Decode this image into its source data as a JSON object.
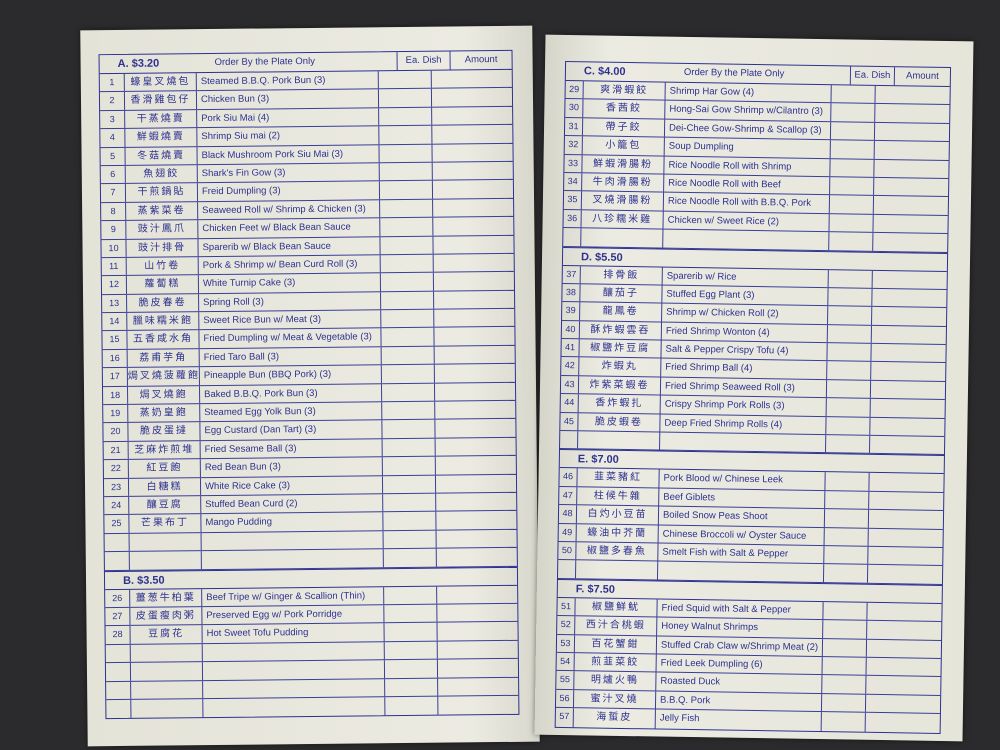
{
  "column_headers": {
    "order_note": "Order By the Plate Only",
    "each_dish": "Ea. Dish",
    "amount": "Amount"
  },
  "left_page": {
    "sections": [
      {
        "price": "A. $3.20",
        "show_headers": true,
        "items": [
          {
            "no": "1",
            "zh": "蠔皇叉燒包",
            "en": "Steamed B.B.Q. Pork Bun (3)"
          },
          {
            "no": "2",
            "zh": "香滑雞包仔",
            "en": "Chicken Bun (3)"
          },
          {
            "no": "3",
            "zh": "干蒸燒賣",
            "en": "Pork Siu Mai (4)"
          },
          {
            "no": "4",
            "zh": "鮮蝦燒賣",
            "en": "Shrimp Siu mai (2)"
          },
          {
            "no": "5",
            "zh": "冬菇燒賣",
            "en": "Black Mushroom Pork Siu Mai (3)"
          },
          {
            "no": "6",
            "zh": "魚翅餃",
            "en": "Shark's Fin Gow (3)"
          },
          {
            "no": "7",
            "zh": "干煎鍋貼",
            "en": "Freid Dumpling (3)"
          },
          {
            "no": "8",
            "zh": "蒸紫菜卷",
            "en": "Seaweed Roll w/ Shrimp & Chicken (3)"
          },
          {
            "no": "9",
            "zh": "豉汁鳳爪",
            "en": "Chicken Feet w/ Black Bean Sauce"
          },
          {
            "no": "10",
            "zh": "豉汁排骨",
            "en": "Sparerib w/ Black Bean Sauce"
          },
          {
            "no": "11",
            "zh": "山竹卷",
            "en": "Pork & Shrimp w/ Bean Curd Roll (3)"
          },
          {
            "no": "12",
            "zh": "蘿蔔糕",
            "en": "White Turnip Cake (3)"
          },
          {
            "no": "13",
            "zh": "脆皮春卷",
            "en": "Spring Roll (3)"
          },
          {
            "no": "14",
            "zh": "臘味糯米飽",
            "en": "Sweet Rice Bun w/ Meat (3)"
          },
          {
            "no": "15",
            "zh": "五香咸水角",
            "en": "Fried Dumpling w/ Meat & Vegetable (3)"
          },
          {
            "no": "16",
            "zh": "荔甫芋角",
            "en": "Fried Taro Ball (3)"
          },
          {
            "no": "17",
            "zh": "焗叉燒菠蘿飽",
            "en": "Pineapple Bun (BBQ Pork) (3)"
          },
          {
            "no": "18",
            "zh": "焗叉燒飽",
            "en": "Baked B.B.Q. Pork Bun (3)"
          },
          {
            "no": "19",
            "zh": "蒸奶皇飽",
            "en": "Steamed Egg Yolk Bun (3)"
          },
          {
            "no": "20",
            "zh": "脆皮蛋撻",
            "en": "Egg Custard (Dan Tart) (3)"
          },
          {
            "no": "21",
            "zh": "芝麻炸煎堆",
            "en": "Fried Sesame Ball (3)"
          },
          {
            "no": "22",
            "zh": "紅豆飽",
            "en": "Red Bean Bun (3)"
          },
          {
            "no": "23",
            "zh": "白糖糕",
            "en": "White Rice Cake (3)"
          },
          {
            "no": "24",
            "zh": "釀豆腐",
            "en": "Stuffed Bean Curd (2)"
          },
          {
            "no": "25",
            "zh": "芒果布丁",
            "en": "Mango Pudding"
          }
        ]
      },
      {
        "price": "B. $3.50",
        "show_headers": false,
        "items": [
          {
            "no": "26",
            "zh": "薑葱牛柏葉",
            "en": "Beef Tripe w/ Ginger & Scallion (Thin)"
          },
          {
            "no": "27",
            "zh": "皮蛋瘦肉粥",
            "en": "Preserved Egg w/ Pork Porridge"
          },
          {
            "no": "28",
            "zh": "豆腐花",
            "en": "Hot Sweet Tofu Pudding"
          }
        ]
      }
    ]
  },
  "right_page": {
    "sections": [
      {
        "price": "C. $4.00",
        "show_headers": true,
        "items": [
          {
            "no": "29",
            "zh": "爽滑蝦餃",
            "en": "Shrimp Har Gow (4)"
          },
          {
            "no": "30",
            "zh": "香茜餃",
            "en": "Hong-Sai Gow Shrimp w/Cilantro (3)"
          },
          {
            "no": "31",
            "zh": "帶子餃",
            "en": "Dei-Chee Gow-Shrimp & Scallop (3)"
          },
          {
            "no": "32",
            "zh": "小籠包",
            "en": "Soup Dumpling"
          },
          {
            "no": "33",
            "zh": "鮮蝦滑腸粉",
            "en": "Rice Noodle Roll with Shrimp"
          },
          {
            "no": "34",
            "zh": "牛肉滑腸粉",
            "en": "Rice Noodle Roll with Beef"
          },
          {
            "no": "35",
            "zh": "叉燒滑腸粉",
            "en": "Rice Noodle Roll with B.B.Q. Pork"
          },
          {
            "no": "36",
            "zh": "八珍糯米雞",
            "en": "Chicken w/ Sweet Rice (2)"
          }
        ]
      },
      {
        "price": "D. $5.50",
        "show_headers": false,
        "items": [
          {
            "no": "37",
            "zh": "排骨飯",
            "en": "Sparerib w/ Rice"
          },
          {
            "no": "38",
            "zh": "釀茄子",
            "en": "Stuffed Egg Plant (3)"
          },
          {
            "no": "39",
            "zh": "龍鳳卷",
            "en": "Shrimp w/ Chicken Roll (2)"
          },
          {
            "no": "40",
            "zh": "酥炸蝦雲吞",
            "en": "Fried Shrimp Wonton (4)"
          },
          {
            "no": "41",
            "zh": "椒鹽炸豆腐",
            "en": "Salt & Pepper Crispy Tofu (4)"
          },
          {
            "no": "42",
            "zh": "炸蝦丸",
            "en": "Fried Shrimp Ball (4)"
          },
          {
            "no": "43",
            "zh": "炸紫菜蝦卷",
            "en": "Fried Shrimp Seaweed Roll (3)"
          },
          {
            "no": "44",
            "zh": "香炸蝦扎",
            "en": "Crispy Shrimp Pork Rolls (3)"
          },
          {
            "no": "45",
            "zh": "脆皮蝦卷",
            "en": "Deep Fried Shrimp Rolls (4)"
          }
        ]
      },
      {
        "price": "E. $7.00",
        "show_headers": false,
        "items": [
          {
            "no": "46",
            "zh": "韮菜豬紅",
            "en": "Pork Blood w/ Chinese Leek"
          },
          {
            "no": "47",
            "zh": "柱候牛雜",
            "en": "Beef Giblets"
          },
          {
            "no": "48",
            "zh": "白灼小豆苗",
            "en": "Boiled Snow Peas Shoot"
          },
          {
            "no": "49",
            "zh": "蠔油中芥蘭",
            "en": "Chinese Broccoli w/ Oyster Sauce"
          },
          {
            "no": "50",
            "zh": "椒鹽多春魚",
            "en": "Smelt Fish with Salt & Pepper"
          }
        ]
      },
      {
        "price": "F. $7.50",
        "show_headers": false,
        "items": [
          {
            "no": "51",
            "zh": "椒鹽鮮魷",
            "en": "Fried Squid with Salt & Pepper"
          },
          {
            "no": "52",
            "zh": "西汁合桃蝦",
            "en": "Honey Walnut Shrimps"
          },
          {
            "no": "53",
            "zh": "百花蟹鉗",
            "en": "Stuffed Crab Claw w/Shrimp Meat (2)"
          },
          {
            "no": "54",
            "zh": "煎韮菜餃",
            "en": "Fried Leek Dumpling (6)"
          },
          {
            "no": "55",
            "zh": "明爐火鴨",
            "en": "Roasted Duck"
          },
          {
            "no": "56",
            "zh": "蜜汁叉燒",
            "en": "B.B.Q. Pork"
          },
          {
            "no": "57",
            "zh": "海蜇皮",
            "en": "Jelly Fish"
          }
        ]
      }
    ]
  }
}
